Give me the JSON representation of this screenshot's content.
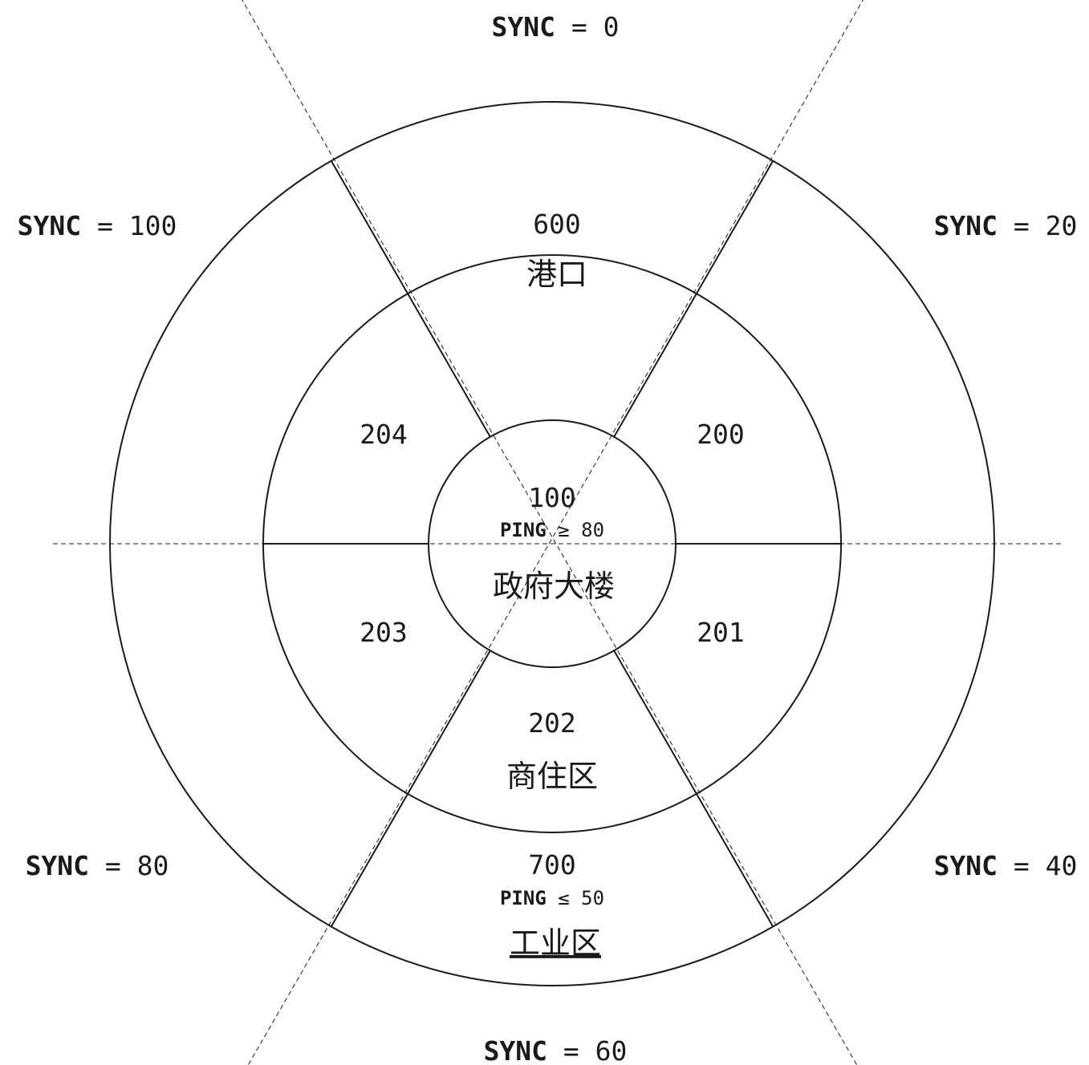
{
  "center": {
    "number": "100",
    "condition_key": "PING",
    "condition_op": "≥",
    "condition_value": "80",
    "name": "政府大楼"
  },
  "inner_ring": [
    {
      "id": "200"
    },
    {
      "id": "201"
    },
    {
      "id": "202",
      "name": "商住区"
    },
    {
      "id": "203"
    },
    {
      "id": "204"
    }
  ],
  "outer_ring": {
    "top": {
      "number": "600",
      "name": "港口"
    },
    "bottom": {
      "number": "700",
      "condition_key": "PING",
      "condition_op": "≤",
      "condition_value": "50",
      "name": "工业区"
    }
  },
  "sync_labels": [
    {
      "key": "SYNC",
      "op": "=",
      "value": "0"
    },
    {
      "key": "SYNC",
      "op": "=",
      "value": "20"
    },
    {
      "key": "SYNC",
      "op": "=",
      "value": "40"
    },
    {
      "key": "SYNC",
      "op": "=",
      "value": "60"
    },
    {
      "key": "SYNC",
      "op": "=",
      "value": "80"
    },
    {
      "key": "SYNC",
      "op": "=",
      "value": "100"
    }
  ]
}
